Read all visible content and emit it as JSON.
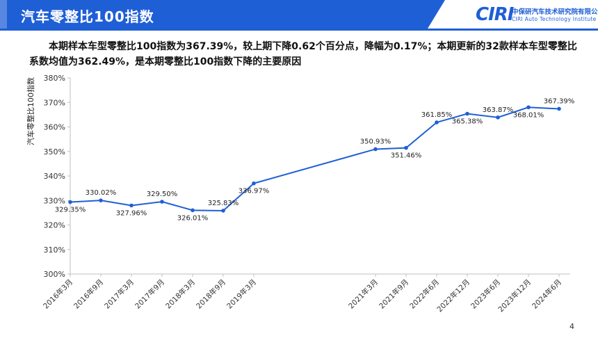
{
  "header": {
    "title": "汽车零整比100指数",
    "logo_mark": "CIRI",
    "logo_cn": "中保研汽车技术研究院有限公司",
    "logo_en": "CIRI Auto Technology Institute",
    "colors": {
      "accent": "#1f5fd6"
    }
  },
  "summary": "本期样本车型零整比100指数为367.39%，较上期下降0.62个百分点，降幅为0.17%；本期更新的32款样本车型零整比系数均值为362.49%，是本期零整比100指数下降的主要原因",
  "chart_data": {
    "type": "line",
    "title": "",
    "xlabel": "",
    "ylabel": "汽车零整比100指数",
    "ylim": [
      300,
      380
    ],
    "yticks": [
      "300%",
      "310%",
      "320%",
      "330%",
      "340%",
      "350%",
      "360%",
      "370%",
      "380%"
    ],
    "grid": false,
    "line_color": "#1f5fd6",
    "x": [
      "2016年3月",
      "2016年9月",
      "2017年3月",
      "2017年9月",
      "2018年3月",
      "2018年9月",
      "2019年3月",
      "2021年3月",
      "2021年9月",
      "2022年6月",
      "2022年12月",
      "2023年6月",
      "2023年12月",
      "2024年6月"
    ],
    "values": [
      329.35,
      330.02,
      327.96,
      329.5,
      326.01,
      325.83,
      336.97,
      350.93,
      351.46,
      361.85,
      365.38,
      363.87,
      368.01,
      367.39
    ],
    "labels": [
      "329.35%",
      "330.02%",
      "327.96%",
      "329.50%",
      "326.01%",
      "325.83%",
      "336.97%",
      "350.93%",
      "351.46%",
      "361.85%",
      "365.38%",
      "363.87%",
      "368.01%",
      "367.39%"
    ]
  },
  "footer": {
    "page_number": "4"
  }
}
